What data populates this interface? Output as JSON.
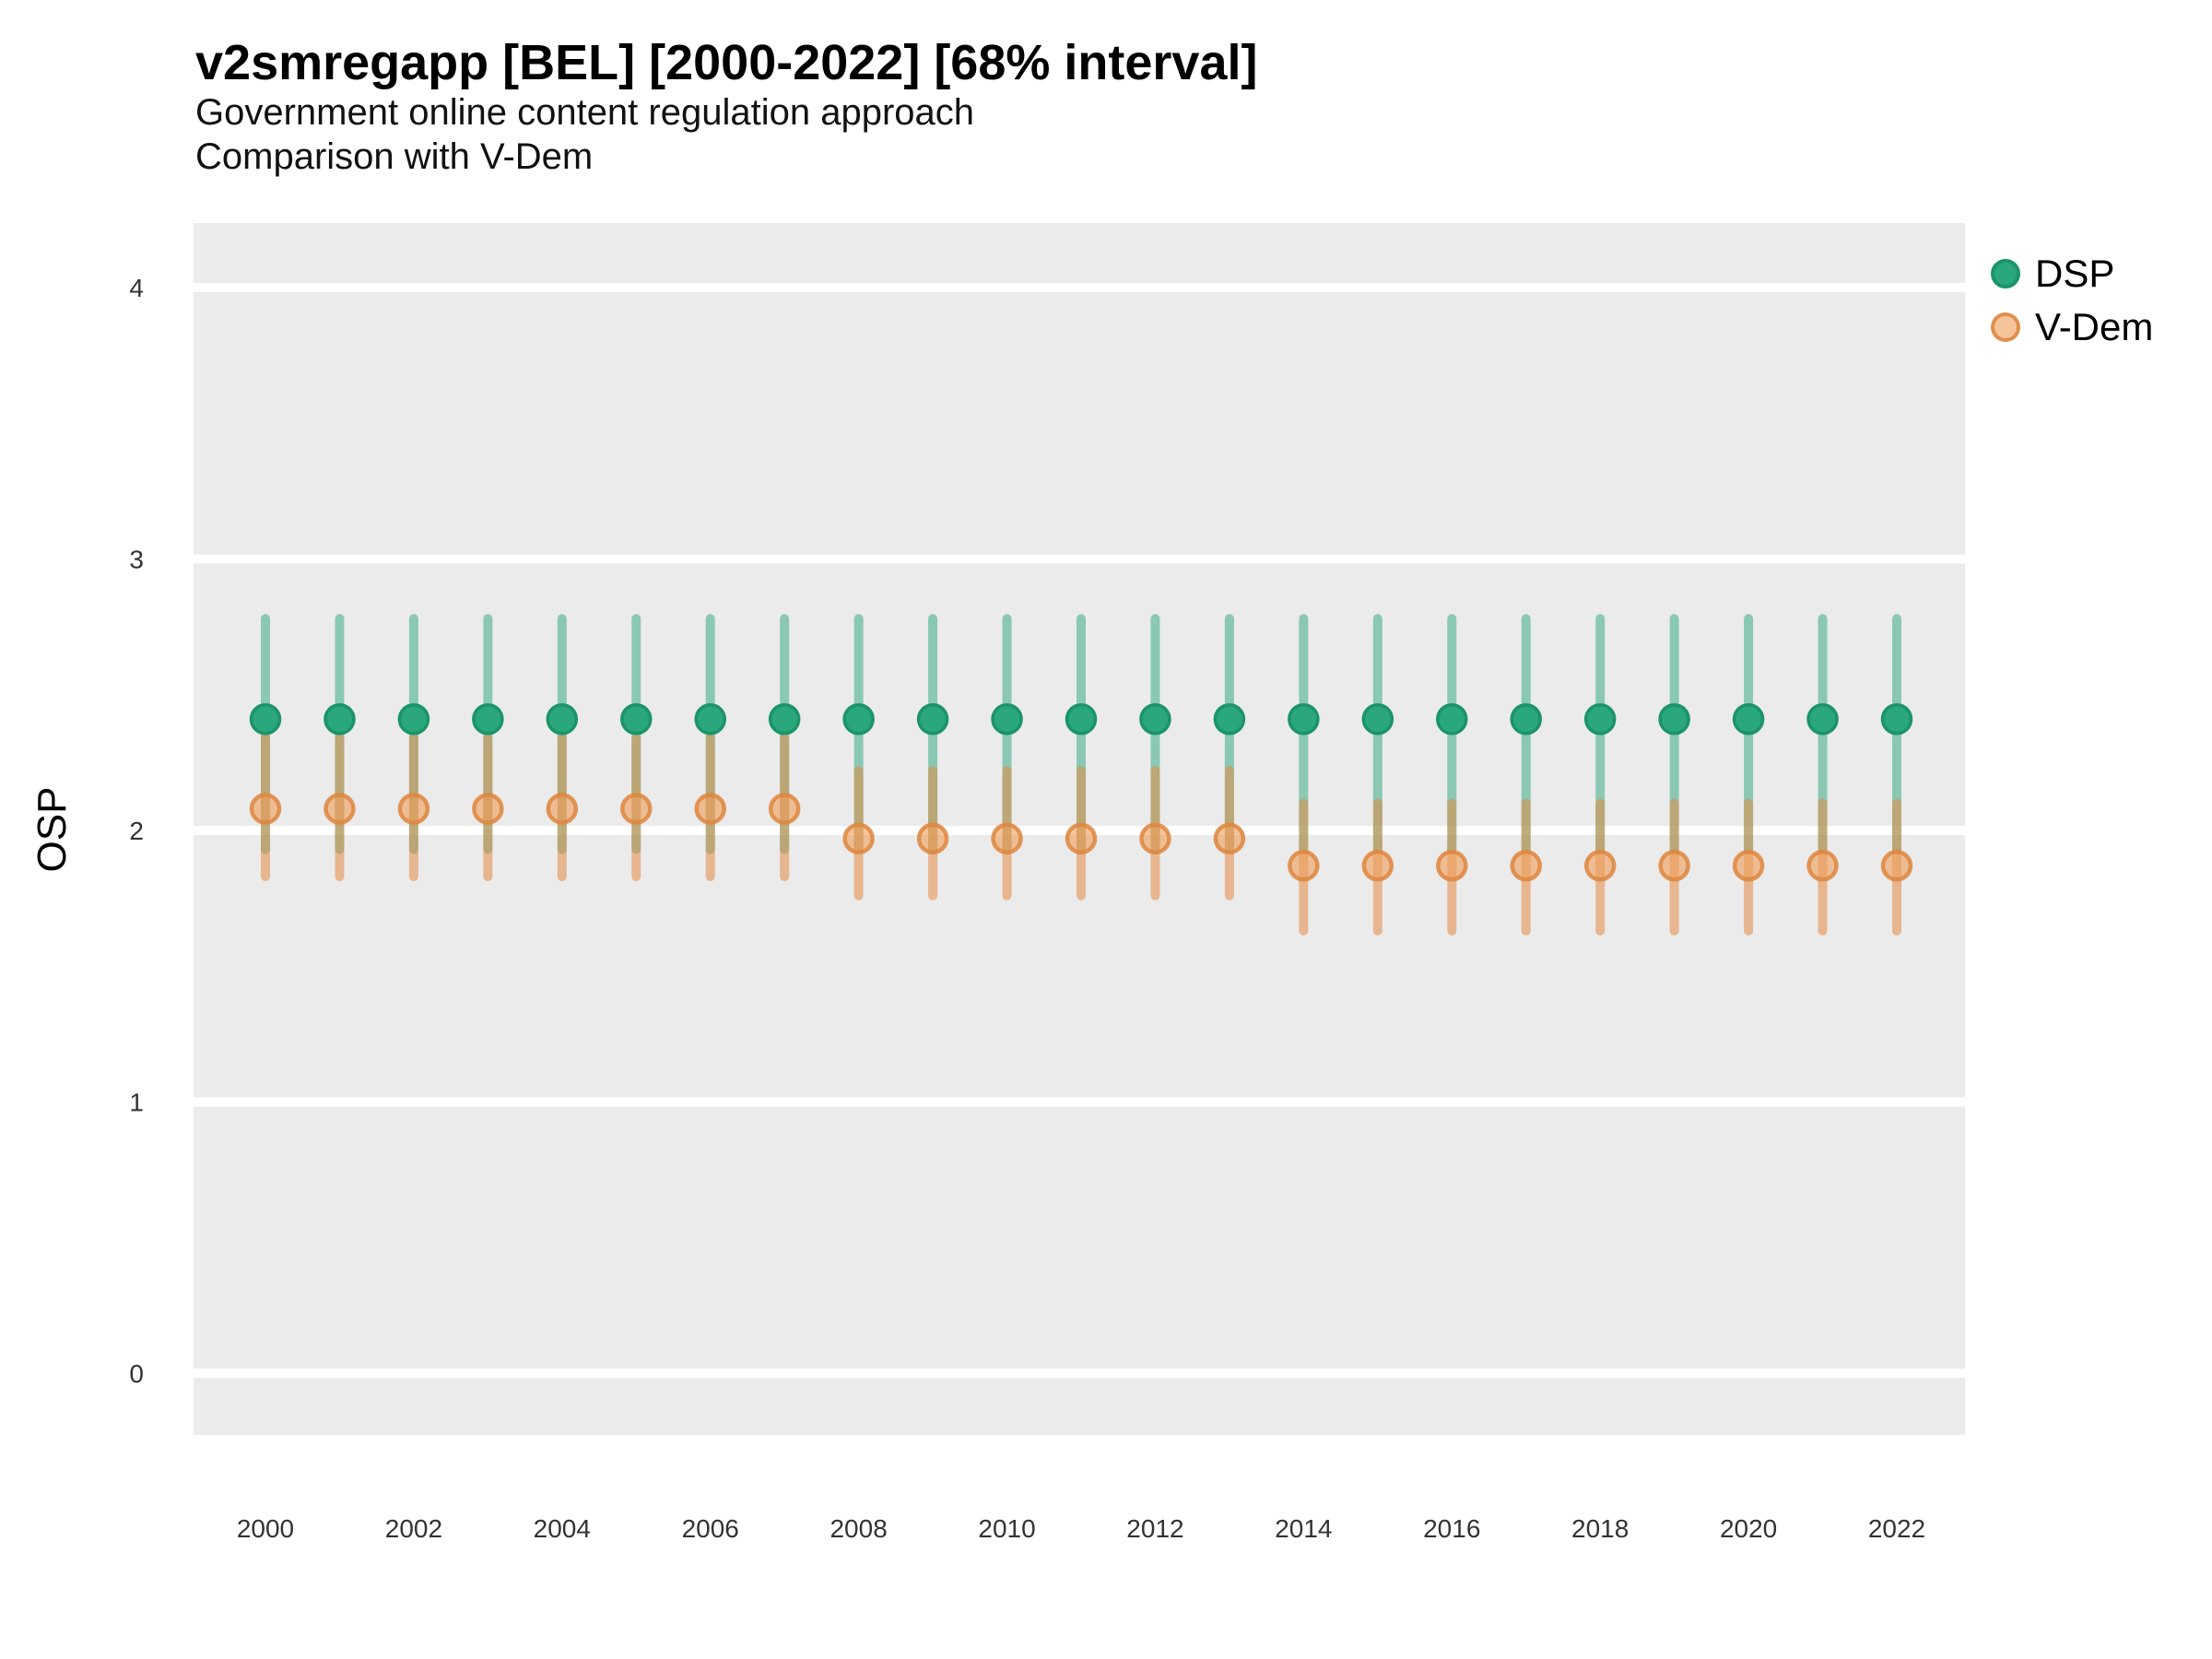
{
  "header": {
    "title": "v2smregapp [BEL] [2000-2022] [68% interval]",
    "subtitle_line1": "Government online content regulation approach",
    "subtitle_line2": "Comparison with V-Dem"
  },
  "y_axis": {
    "label": "OSP"
  },
  "legend": {
    "items": [
      {
        "label": "DSP"
      },
      {
        "label": "V-Dem"
      }
    ]
  },
  "colors": {
    "dsp_point_fill": "#2aa77d",
    "dsp_point_stroke": "#1b9468",
    "dsp_bar": "rgba(42,166,126,0.5)",
    "vdem_point_fill": "rgba(238,156,88,0.6)",
    "vdem_point_stroke": "rgba(222,134,62,0.85)",
    "vdem_bar": "rgba(228,138,68,0.55)",
    "panel_bg": "#ebebeb",
    "gridline": "#ffffff",
    "tick_text": "#333333"
  },
  "chart_data": {
    "type": "pointrange",
    "title": "v2smregapp [BEL] [2000-2022] [68% interval]",
    "interval": "68%",
    "xlabel": "",
    "ylabel": "OSP",
    "ylim": [
      -0.21,
      4.24
    ],
    "yticks": [
      0,
      1,
      2,
      3,
      4
    ],
    "xticks": [
      2000,
      2002,
      2004,
      2006,
      2008,
      2010,
      2012,
      2014,
      2016,
      2018,
      2020,
      2022
    ],
    "grid": "major-horizontal-only",
    "legend_position": "top-right",
    "x": [
      2000,
      2001,
      2002,
      2003,
      2004,
      2005,
      2006,
      2007,
      2008,
      2009,
      2010,
      2011,
      2012,
      2013,
      2014,
      2015,
      2016,
      2017,
      2018,
      2019,
      2020,
      2021,
      2022
    ],
    "series": [
      {
        "name": "DSP",
        "est": [
          2.41,
          2.41,
          2.41,
          2.41,
          2.41,
          2.41,
          2.41,
          2.41,
          2.41,
          2.41,
          2.41,
          2.41,
          2.41,
          2.41,
          2.41,
          2.41,
          2.41,
          2.41,
          2.41,
          2.41,
          2.41,
          2.41,
          2.41
        ],
        "lo": [
          1.93,
          1.93,
          1.93,
          1.93,
          1.93,
          1.93,
          1.93,
          1.93,
          1.93,
          1.93,
          1.93,
          1.93,
          1.93,
          1.93,
          1.93,
          1.93,
          1.93,
          1.93,
          1.93,
          1.93,
          1.93,
          1.93,
          1.93
        ],
        "hi": [
          2.78,
          2.78,
          2.78,
          2.78,
          2.78,
          2.78,
          2.78,
          2.78,
          2.78,
          2.78,
          2.78,
          2.78,
          2.78,
          2.78,
          2.78,
          2.78,
          2.78,
          2.78,
          2.78,
          2.78,
          2.78,
          2.78,
          2.78
        ]
      },
      {
        "name": "V-Dem",
        "est": [
          2.08,
          2.08,
          2.08,
          2.08,
          2.08,
          2.08,
          2.08,
          2.08,
          1.97,
          1.97,
          1.97,
          1.97,
          1.97,
          1.97,
          1.87,
          1.87,
          1.87,
          1.87,
          1.87,
          1.87,
          1.87,
          1.87,
          1.87
        ],
        "lo": [
          1.83,
          1.83,
          1.83,
          1.83,
          1.83,
          1.83,
          1.83,
          1.83,
          1.76,
          1.76,
          1.76,
          1.76,
          1.76,
          1.76,
          1.63,
          1.63,
          1.63,
          1.63,
          1.63,
          1.63,
          1.63,
          1.63,
          1.63
        ],
        "hi": [
          2.34,
          2.34,
          2.34,
          2.34,
          2.34,
          2.34,
          2.34,
          2.34,
          2.22,
          2.22,
          2.22,
          2.22,
          2.22,
          2.22,
          2.1,
          2.1,
          2.1,
          2.1,
          2.1,
          2.1,
          2.1,
          2.1,
          2.1
        ]
      }
    ]
  }
}
